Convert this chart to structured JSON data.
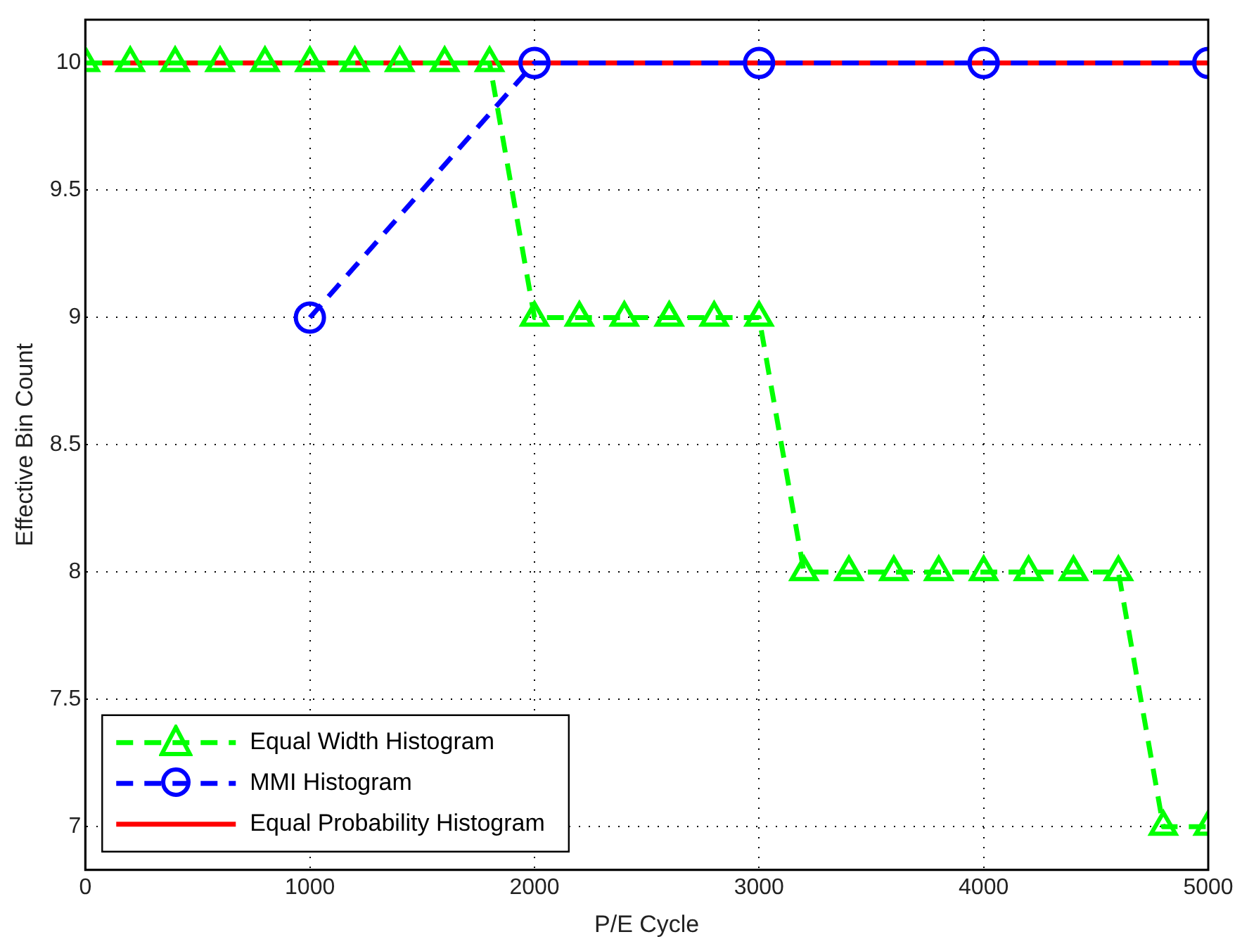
{
  "chart_data": {
    "type": "line",
    "xlabel": "P/E Cycle",
    "ylabel": "Effective Bin Count",
    "xlim": [
      0,
      5000
    ],
    "xticks": [
      0,
      1000,
      2000,
      3000,
      4000,
      5000
    ],
    "ylim": [
      6.83,
      10.17
    ],
    "yticks": [
      7,
      7.5,
      8,
      8.5,
      9,
      9.5,
      10
    ],
    "grid": true,
    "legend": "bottom left",
    "series": [
      {
        "name": "Equal Width Histogram",
        "color": "#00ff00",
        "marker": "triangle",
        "line_style": "dashed",
        "x": [
          0,
          200,
          400,
          600,
          800,
          1000,
          1200,
          1400,
          1600,
          1800,
          2000,
          2200,
          2400,
          2600,
          2800,
          3000,
          3200,
          3400,
          3600,
          3800,
          4000,
          4200,
          4400,
          4600,
          4800,
          5000
        ],
        "values": [
          10,
          10,
          10,
          10,
          10,
          10,
          10,
          10,
          10,
          10,
          9,
          9,
          9,
          9,
          9,
          9,
          8,
          8,
          8,
          8,
          8,
          8,
          8,
          8,
          7,
          7
        ]
      },
      {
        "name": "MMI Histogram",
        "color": "#0000ff",
        "marker": "circle",
        "line_style": "dashed",
        "x": [
          1000,
          2000,
          3000,
          4000,
          5000
        ],
        "values": [
          9,
          10,
          10,
          10,
          10
        ]
      },
      {
        "name": "Equal Probability Histogram",
        "color": "#ff0000",
        "marker": "none",
        "line_style": "solid",
        "x": [
          0,
          5000
        ],
        "values": [
          10,
          10
        ]
      }
    ]
  }
}
